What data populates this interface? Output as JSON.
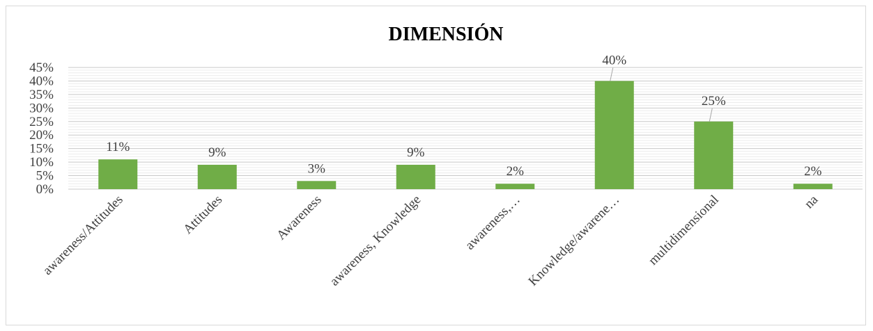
{
  "chart_data": {
    "type": "bar",
    "title": "DIMENSIÓN",
    "xlabel": "",
    "ylabel": "",
    "ylim": [
      0,
      45
    ],
    "y_tick_labels": [
      "0%",
      "5%",
      "10%",
      "15%",
      "20%",
      "25%",
      "30%",
      "35%",
      "40%",
      "45%"
    ],
    "categories": [
      "awareness/Attitudes",
      "Attitudes",
      "Awareness",
      "awareness, Knowledge",
      "awareness,…",
      "Knowledge/awarene…",
      "multidimensional",
      "na"
    ],
    "values": [
      11,
      9,
      3,
      9,
      2,
      40,
      25,
      2
    ],
    "data_labels": [
      "11%",
      "9%",
      "3%",
      "9%",
      "2%",
      "40%",
      "25%",
      "2%"
    ],
    "grid": true,
    "legend": "none",
    "bar_color": "#70ad47",
    "grid_color": "#d9d9d9"
  }
}
